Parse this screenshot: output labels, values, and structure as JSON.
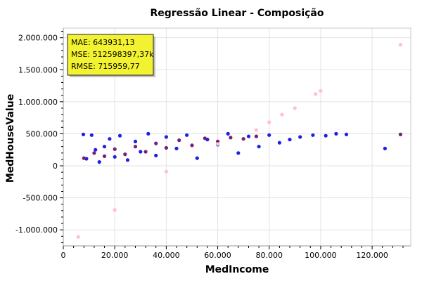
{
  "chart_data": {
    "type": "scatter",
    "title": "Regressão Linear - Composição",
    "xlabel": "MedIncome",
    "ylabel": "MedHouseValue",
    "xlim": [
      0,
      135000
    ],
    "ylim": [
      -1250000,
      2150000
    ],
    "x_ticks": [
      0,
      20000,
      40000,
      60000,
      80000,
      100000,
      120000
    ],
    "x_tick_labels": [
      "0",
      "20.000",
      "40.000",
      "60.000",
      "80.000",
      "100.000",
      "120.000"
    ],
    "y_ticks": [
      -1000000,
      -500000,
      0,
      500000,
      1000000,
      1500000,
      2000000
    ],
    "y_tick_labels": [
      "-1.000.000",
      "-500.000",
      "0",
      "500.000",
      "1.000.000",
      "1.500.000",
      "2.000.000"
    ],
    "grid": true,
    "legend": "none",
    "colors": {
      "actual": "#1f1fe6",
      "predicted_overlap": "#7a1f73",
      "regression": "#ffc0cb",
      "metrics_box": "#f2f230"
    },
    "series": [
      {
        "color": "#1f1fe6",
        "x": [
          7800,
          9000,
          11000,
          12500,
          14000,
          16000,
          18000,
          20000,
          22000,
          25000,
          28000,
          30000,
          33000,
          36000,
          40000,
          44000,
          48000,
          52000,
          56000,
          60000,
          64000,
          68000,
          72000,
          76000,
          80000,
          84000,
          88000,
          92000,
          97000,
          102000,
          106000,
          110000,
          125000
        ],
        "y": [
          490000,
          110000,
          480000,
          250000,
          60000,
          300000,
          420000,
          140000,
          470000,
          90000,
          380000,
          220000,
          500000,
          160000,
          450000,
          270000,
          480000,
          120000,
          410000,
          330000,
          500000,
          200000,
          460000,
          300000,
          480000,
          360000,
          410000,
          450000,
          480000,
          470000,
          500000,
          490000,
          270000
        ]
      },
      {
        "color": "#7a1f73",
        "x": [
          8000,
          12000,
          16000,
          20000,
          24000,
          28000,
          32000,
          36000,
          40000,
          45000,
          50000,
          55000,
          60000,
          65000,
          70000,
          75000,
          131000
        ],
        "y": [
          120000,
          200000,
          150000,
          260000,
          180000,
          300000,
          220000,
          350000,
          280000,
          400000,
          320000,
          430000,
          380000,
          440000,
          420000,
          460000,
          490000
        ]
      },
      {
        "color": "#ffc0cb",
        "x": [
          5800,
          20000,
          40000,
          60000,
          75000,
          80000,
          85000,
          90000,
          98000,
          100000,
          131000
        ],
        "y": [
          -1110000,
          -690000,
          -90000,
          340000,
          560000,
          680000,
          800000,
          900000,
          1120000,
          1170000,
          1890000
        ]
      }
    ]
  },
  "metrics_box": {
    "mae": "MAE: 643931,13",
    "mse": "MSE: 512598397,37k",
    "rmse": "RMSE: 715959,77"
  }
}
